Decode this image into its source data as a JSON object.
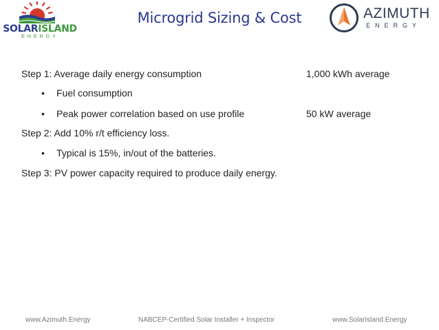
{
  "header": {
    "title": "Microgrid Sizing & Cost",
    "logo_left": {
      "name_part1": "SOLAR",
      "name_part2": "ISLAND",
      "sub": "ENERGY",
      "colors": {
        "blue": "#2c3e8f",
        "green": "#3d9a3d",
        "red": "#d23a2a"
      }
    },
    "logo_right": {
      "name": "AZIMUTH",
      "sub": "ENERGY",
      "colors": {
        "orange": "#e8762c",
        "navy": "#2e3b53"
      }
    }
  },
  "body": {
    "step1": {
      "label": "Step 1: Average daily energy consumption",
      "value": "1,000 kWh average"
    },
    "bullet1": {
      "marker": "•",
      "text": "Fuel consumption"
    },
    "bullet2": {
      "marker": "•",
      "text": "Peak power correlation based on use profile",
      "value": "50 kW average"
    },
    "step2": {
      "label": "Step 2: Add 10% r/t efficiency loss."
    },
    "bullet3": {
      "marker": "•",
      "text": "Typical is 15%, in/out of the batteries."
    },
    "step3": {
      "label": "Step 3: PV power capacity required to produce daily energy."
    }
  },
  "footer": {
    "left": "www.Azimuth.Energy",
    "center": "NABCEP-Certified Solar Installer + Inspector",
    "right": "www.SolarIsland.Energy"
  },
  "colors": {
    "title": "#2a3a8c",
    "body_text": "#222222",
    "footer_text": "#777777"
  }
}
